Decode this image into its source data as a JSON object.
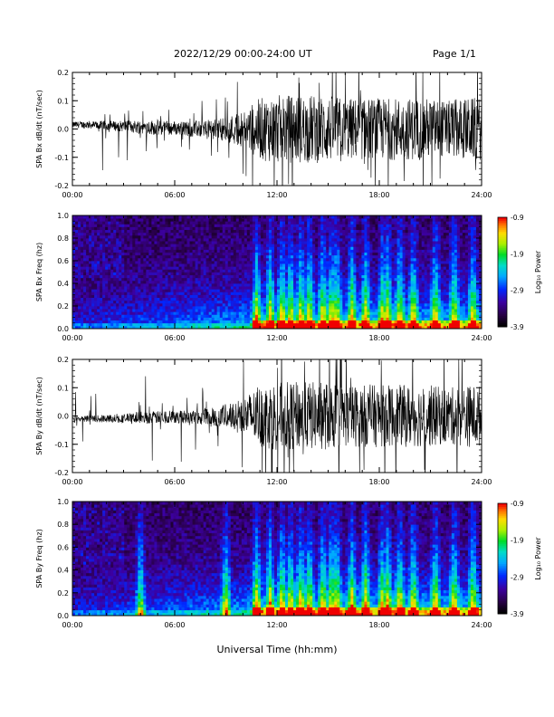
{
  "header": {
    "title": "2022/12/29  00:00-24:00 UT",
    "page": "Page 1/1"
  },
  "xaxis_label": "Universal Time (hh:mm)",
  "chart_data": [
    {
      "type": "line",
      "ylabel": "SPA Bx dB/dt (nT/sec)",
      "xlim": [
        0,
        24
      ],
      "ylim": [
        -0.2,
        0.2
      ],
      "xticks": [
        "00:00",
        "06:00",
        "12:00",
        "18:00",
        "24:00"
      ],
      "yticks": [
        "-0.2",
        "-0.1",
        "0.0",
        "0.1",
        "0.2"
      ],
      "ytick_values": [
        -0.2,
        -0.1,
        0.0,
        0.1,
        0.2
      ],
      "series": [
        {
          "color": "#000000",
          "x": [
            0,
            1,
            2,
            3,
            4,
            5,
            6,
            7,
            8,
            9,
            10,
            11,
            12,
            13,
            14,
            15,
            16,
            17,
            18,
            19,
            20,
            21,
            22,
            23,
            24
          ],
          "amplitude": [
            0.02,
            0.025,
            0.03,
            0.035,
            0.045,
            0.05,
            0.045,
            0.05,
            0.06,
            0.08,
            0.12,
            0.2,
            0.22,
            0.22,
            0.22,
            0.22,
            0.2,
            0.2,
            0.2,
            0.2,
            0.2,
            0.2,
            0.18,
            0.2,
            0.2
          ],
          "offset": [
            0.015,
            0.015,
            0.012,
            0.01,
            0.008,
            0.005,
            0.003,
            0.0,
            0.0,
            0.0,
            0.0,
            0.0,
            0.0,
            0.0,
            0.0,
            0.0,
            0.0,
            0.0,
            0.0,
            0.0,
            0.0,
            0.0,
            0.0,
            0.0,
            0.0
          ]
        }
      ]
    },
    {
      "type": "heatmap",
      "ylabel": "SPA Bx Freq (hz)",
      "colorbar_label": "Log₁₀ Power",
      "xlim": [
        0,
        24
      ],
      "ylim": [
        0,
        1.0
      ],
      "xticks": [
        "00:00",
        "06:00",
        "12:00",
        "18:00",
        "24:00"
      ],
      "yticks": [
        "0.0",
        "0.2",
        "0.4",
        "0.6",
        "0.8",
        "1.0"
      ],
      "ytick_values": [
        0.0,
        0.2,
        0.4,
        0.6,
        0.8,
        1.0
      ],
      "clim": [
        -3.9,
        -0.9
      ],
      "colorbar_ticks": [
        "-0.9",
        "-1.9",
        "-2.9",
        "-3.9"
      ],
      "colorbar_tick_values": [
        -0.9,
        -1.9,
        -2.9,
        -3.9
      ],
      "strong_events_hours": [
        10.8,
        11.6,
        12.3,
        12.8,
        13.4,
        13.9,
        14.7,
        15.2,
        15.5,
        16.4,
        17.2,
        18.2,
        18.5,
        19.2,
        20.0,
        21.3,
        22.4,
        23.5
      ]
    },
    {
      "type": "line",
      "ylabel": "SPA By dB/dt (nT/sec)",
      "xlim": [
        0,
        24
      ],
      "ylim": [
        -0.2,
        0.2
      ],
      "xticks": [
        "00:00",
        "06:00",
        "12:00",
        "18:00",
        "24:00"
      ],
      "yticks": [
        "-0.2",
        "-0.1",
        "0.0",
        "0.1",
        "0.2"
      ],
      "ytick_values": [
        -0.2,
        -0.1,
        0.0,
        0.1,
        0.2
      ],
      "series": [
        {
          "color": "#000000",
          "x": [
            0,
            1,
            2,
            3,
            4,
            5,
            6,
            7,
            8,
            9,
            10,
            11,
            12,
            13,
            14,
            15,
            16,
            17,
            18,
            19,
            20,
            21,
            22,
            23,
            24
          ],
          "amplitude": [
            0.015,
            0.02,
            0.025,
            0.03,
            0.04,
            0.04,
            0.04,
            0.05,
            0.06,
            0.08,
            0.12,
            0.2,
            0.22,
            0.22,
            0.22,
            0.22,
            0.2,
            0.2,
            0.2,
            0.2,
            0.2,
            0.2,
            0.18,
            0.2,
            0.2
          ],
          "offset": [
            -0.01,
            -0.01,
            -0.01,
            -0.008,
            -0.006,
            -0.005,
            -0.003,
            0.0,
            0.0,
            0.0,
            0.0,
            0.0,
            0.0,
            0.0,
            0.0,
            0.0,
            0.0,
            0.0,
            0.0,
            0.0,
            0.0,
            0.0,
            0.0,
            0.0,
            0.0
          ]
        }
      ]
    },
    {
      "type": "heatmap",
      "ylabel": "SPA By Freq (hz)",
      "colorbar_label": "Log₁₀ Power",
      "xlim": [
        0,
        24
      ],
      "ylim": [
        0,
        1.0
      ],
      "xticks": [
        "00:00",
        "06:00",
        "12:00",
        "18:00",
        "24:00"
      ],
      "yticks": [
        "0.0",
        "0.2",
        "0.4",
        "0.6",
        "0.8",
        "1.0"
      ],
      "ytick_values": [
        0.0,
        0.2,
        0.4,
        0.6,
        0.8,
        1.0
      ],
      "clim": [
        -3.9,
        -0.9
      ],
      "colorbar_ticks": [
        "-0.9",
        "-1.9",
        "-2.9",
        "-3.9"
      ],
      "colorbar_tick_values": [
        -0.9,
        -1.9,
        -2.9,
        -3.9
      ],
      "strong_events_hours": [
        4.0,
        9.0,
        10.8,
        11.6,
        12.3,
        12.8,
        13.4,
        13.9,
        14.7,
        15.2,
        15.5,
        16.4,
        17.2,
        18.2,
        18.5,
        19.2,
        20.0,
        21.3,
        22.4,
        23.5
      ]
    }
  ]
}
